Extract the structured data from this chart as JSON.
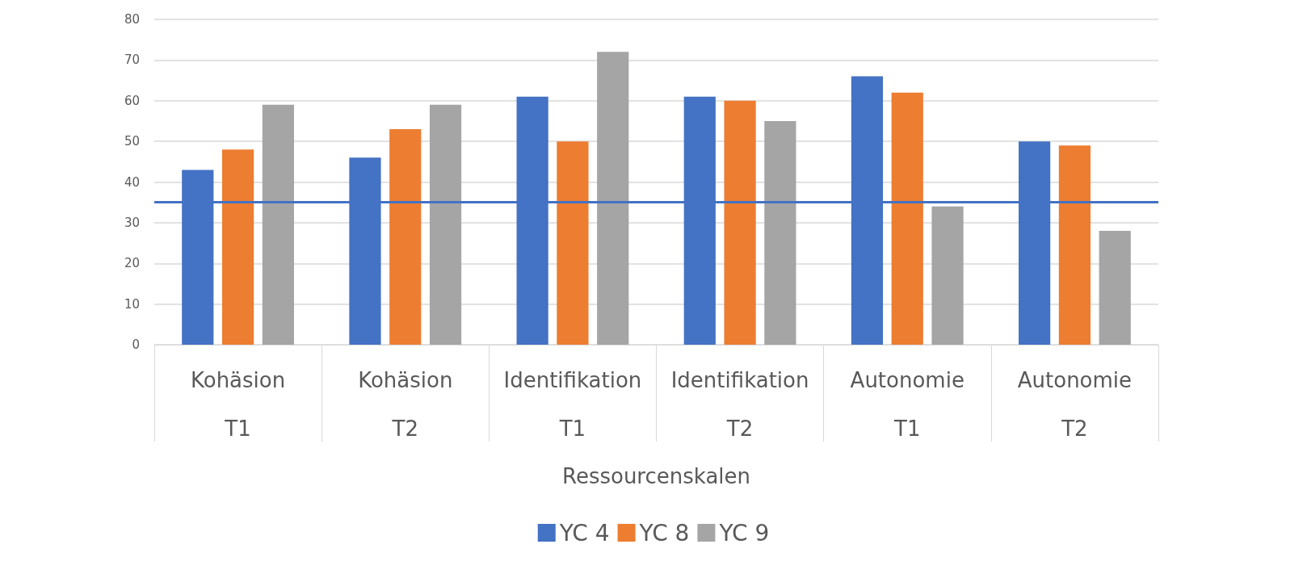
{
  "chart_data": {
    "type": "bar",
    "xlabel": "Ressourcenskalen",
    "categories": [
      "Kohäsion\nT1",
      "Kohäsion\nT2",
      "Identifikation\nT1",
      "Identifikation\nT2",
      "Autonomie\nT1",
      "Autonomie\nT2"
    ],
    "series": [
      {
        "name": "YC 4",
        "color": "#4472c4",
        "values": [
          43,
          46,
          61,
          61,
          66,
          50
        ]
      },
      {
        "name": "YC 8",
        "color": "#ed7d31",
        "values": [
          48,
          53,
          50,
          60,
          62,
          49
        ]
      },
      {
        "name": "YC 9",
        "color": "#a5a5a5",
        "values": [
          59,
          59,
          72,
          55,
          34,
          28
        ]
      }
    ],
    "ylim": [
      0,
      80
    ],
    "yticks": [
      0,
      10,
      20,
      30,
      40,
      50,
      60,
      70,
      80
    ],
    "grid": "y",
    "legend": "bottom",
    "ref_lines": [
      {
        "axis": "y",
        "value": 35,
        "color": "#4472c4"
      }
    ]
  }
}
